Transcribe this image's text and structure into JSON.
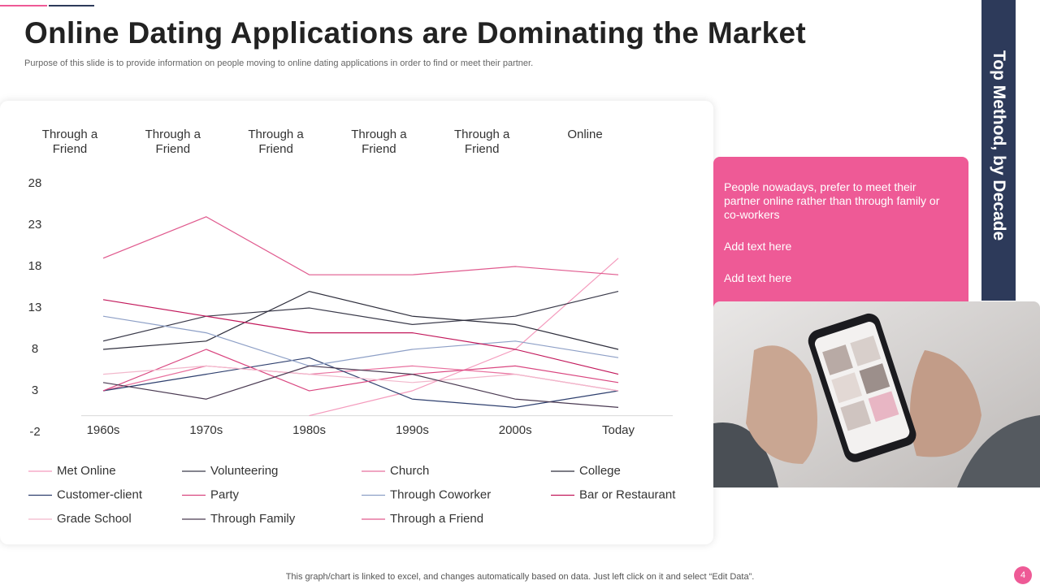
{
  "title": "Online Dating Applications are Dominating the Market",
  "subtitle": "Purpose of this slide is to provide information on people moving to online dating applications in order to find or meet their partner.",
  "side_label": "Top Method, by Decade",
  "callout": [
    "People nowadays, prefer to meet their partner online rather than through family or co-workers",
    "Add text here",
    "Add text here"
  ],
  "footer": "This graph/chart is linked to excel,  and changes automatically based on data. Just left click on it and select “Edit Data”.",
  "page_number": "4",
  "chart_data": {
    "type": "line",
    "annotations": [
      "Through a Friend",
      "Through a Friend",
      "Through a Friend",
      "Through a Friend",
      "Through a Friend",
      "Online"
    ],
    "categories": [
      "1960s",
      "1970s",
      "1980s",
      "1990s",
      "2000s",
      "Today"
    ],
    "ylim": [
      -2,
      28
    ],
    "yticks": [
      -2,
      3,
      8,
      13,
      18,
      23,
      28
    ],
    "series": [
      {
        "name": "Met Online",
        "color": "#f49bbd",
        "values": [
          null,
          null,
          0,
          3,
          8,
          19
        ]
      },
      {
        "name": "Volunteering",
        "color": "#3a3a4a",
        "values": [
          9,
          12,
          13,
          11,
          12,
          15
        ]
      },
      {
        "name": "Church",
        "color": "#e8709e",
        "values": [
          3,
          6,
          5,
          6,
          5,
          3
        ]
      },
      {
        "name": "College",
        "color": "#2e2e3c",
        "values": [
          8,
          9,
          15,
          12,
          11,
          8
        ]
      },
      {
        "name": "Customer-client",
        "color": "#2e3f6e",
        "values": [
          3,
          5,
          7,
          2,
          1,
          3
        ]
      },
      {
        "name": "Party",
        "color": "#d9457f",
        "values": [
          3,
          8,
          3,
          5,
          6,
          4
        ]
      },
      {
        "name": "Through  Coworker",
        "color": "#8d9fc6",
        "values": [
          12,
          10,
          6,
          8,
          9,
          7
        ]
      },
      {
        "name": "Bar or Restaurant",
        "color": "#c2185b",
        "values": [
          14,
          12,
          10,
          10,
          8,
          5
        ]
      },
      {
        "name": "Grade School",
        "color": "#f2b8cc",
        "values": [
          5,
          6,
          5,
          4,
          5,
          3
        ]
      },
      {
        "name": "Through  Family",
        "color": "#4a3a52",
        "values": [
          4,
          2,
          6,
          5,
          2,
          1
        ]
      },
      {
        "name": "Through  a Friend",
        "color": "#e05a8e",
        "values": [
          19,
          24,
          17,
          17,
          18,
          17
        ]
      }
    ]
  }
}
